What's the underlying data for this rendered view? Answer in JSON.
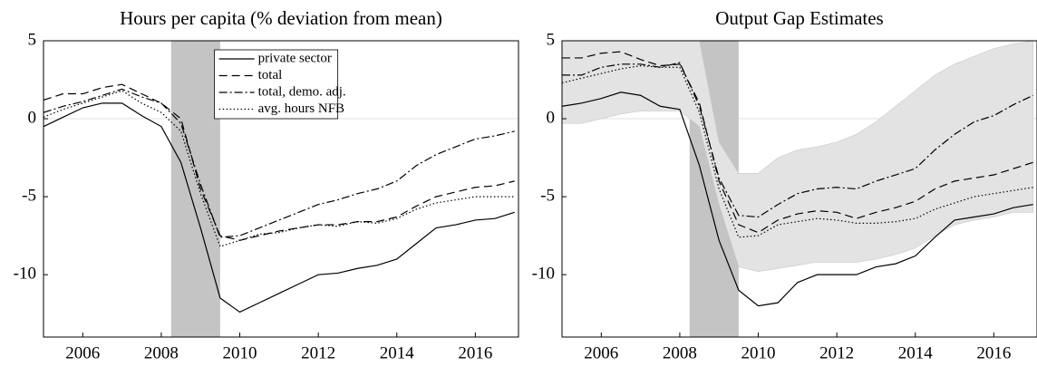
{
  "chart_data": [
    {
      "type": "line",
      "title": "Hours per capita (% deviation from mean)",
      "x": [
        2005,
        2005.5,
        2006,
        2006.5,
        2007,
        2007.5,
        2008,
        2008.5,
        2009,
        2009.5,
        2010,
        2010.5,
        2011,
        2011.5,
        2012,
        2012.5,
        2013,
        2013.5,
        2014,
        2014.5,
        2015,
        2015.5,
        2016,
        2016.5,
        2017
      ],
      "xlim": [
        2005,
        2017.1
      ],
      "xticks": [
        2006,
        2008,
        2010,
        2012,
        2014,
        2016
      ],
      "ylim": [
        -14,
        5
      ],
      "yticks": [
        5,
        0,
        -5,
        -10
      ],
      "zero_line": true,
      "recession": [
        2008.25,
        2009.5
      ],
      "legend": "upper-center",
      "series": [
        {
          "name": "private sector",
          "color": "#000000",
          "dash": "solid",
          "values": [
            -0.5,
            0.1,
            0.7,
            1.0,
            1.0,
            0.2,
            -0.5,
            -2.8,
            -7,
            -11.5,
            -12.4,
            -11.8,
            -11.2,
            -10.6,
            -10,
            -9.9,
            -9.6,
            -9.4,
            -9,
            -8,
            -7,
            -6.8,
            -6.5,
            -6.4,
            -6
          ]
        },
        {
          "name": "total",
          "color": "#000000",
          "dash": "dashed",
          "values": [
            1.2,
            1.6,
            1.6,
            2.0,
            2.2,
            1.6,
            1.0,
            0,
            -4.5,
            -7.5,
            -7.8,
            -7.5,
            -7.2,
            -7,
            -6.8,
            -6.8,
            -6.6,
            -6.6,
            -6.3,
            -5.6,
            -5,
            -4.7,
            -4.4,
            -4.3,
            -4
          ]
        },
        {
          "name": "total, demo. adj.",
          "color": "#000000",
          "dash": "dashdot",
          "values": [
            0.4,
            0.8,
            1.1,
            1.5,
            1.9,
            1.4,
            1.0,
            -0.3,
            -4.2,
            -7.6,
            -7.5,
            -7.0,
            -6.5,
            -6,
            -5.5,
            -5.2,
            -4.8,
            -4.5,
            -4,
            -3,
            -2.3,
            -1.8,
            -1.3,
            -1.1,
            -0.8
          ]
        },
        {
          "name": "avg. hours NFB",
          "color": "#000000",
          "dash": "dotted",
          "values": [
            0.1,
            0.6,
            1.0,
            1.4,
            1.8,
            1.0,
            0.4,
            -0.8,
            -4.8,
            -8.2,
            -7.8,
            -7.4,
            -7.3,
            -7,
            -6.8,
            -6.9,
            -6.6,
            -6.7,
            -6.4,
            -5.8,
            -5.4,
            -5.2,
            -5,
            -5,
            -5
          ]
        }
      ]
    },
    {
      "type": "line",
      "title": "Output Gap Estimates",
      "x": [
        2005,
        2005.5,
        2006,
        2006.5,
        2007,
        2007.5,
        2008,
        2008.5,
        2009,
        2009.5,
        2010,
        2010.5,
        2011,
        2011.5,
        2012,
        2012.5,
        2013,
        2013.5,
        2014,
        2014.5,
        2015,
        2015.5,
        2016,
        2016.5,
        2017
      ],
      "xlim": [
        2005,
        2017.1
      ],
      "xticks": [
        2006,
        2008,
        2010,
        2012,
        2014,
        2016
      ],
      "ylim": [
        -14,
        5
      ],
      "yticks": [
        5,
        0,
        -5,
        -10
      ],
      "zero_line": true,
      "recession": [
        2008.25,
        2009.5
      ],
      "band": {
        "color": "#e3e3e3",
        "lower": [
          -0.3,
          -0.3,
          0,
          0.3,
          0.5,
          0.5,
          0.5,
          -0.5,
          -5.5,
          -9.5,
          -9.8,
          -9.6,
          -9.4,
          -9.2,
          -9.2,
          -9.2,
          -9,
          -8.7,
          -8.3,
          -7.5,
          -6.8,
          -6.5,
          -6.3,
          -6,
          -6
        ],
        "upper": [
          5,
          5,
          5,
          5,
          5,
          5,
          5,
          5,
          -1.5,
          -3.5,
          -3.5,
          -2.5,
          -2,
          -1.8,
          -1.5,
          -1,
          -0.2,
          0.8,
          1.8,
          2.8,
          3.5,
          4,
          4.5,
          4.8,
          5
        ]
      },
      "series": [
        {
          "name": "private sector",
          "color": "#000000",
          "dash": "solid",
          "values": [
            0.8,
            1.0,
            1.3,
            1.7,
            1.5,
            0.8,
            0.6,
            -3,
            -7.8,
            -11,
            -12,
            -11.8,
            -10.5,
            -10,
            -10,
            -10,
            -9.5,
            -9.3,
            -8.8,
            -7.6,
            -6.5,
            -6.3,
            -6.1,
            -5.7,
            -5.5
          ]
        },
        {
          "name": "total",
          "color": "#000000",
          "dash": "dashed",
          "values": [
            3.9,
            3.9,
            4.2,
            4.3,
            3.8,
            3.4,
            3.5,
            1,
            -4,
            -6.8,
            -7.3,
            -6.5,
            -6.1,
            -5.9,
            -6,
            -6.4,
            -6,
            -5.7,
            -5.3,
            -4.5,
            -4,
            -3.8,
            -3.6,
            -3.2,
            -2.8
          ]
        },
        {
          "name": "total, demo. adj.",
          "color": "#000000",
          "dash": "dashdot",
          "values": [
            2.8,
            2.8,
            3.3,
            3.5,
            3.5,
            3.3,
            3.6,
            0.8,
            -3.8,
            -6.2,
            -6.3,
            -5.5,
            -4.8,
            -4.5,
            -4.4,
            -4.5,
            -4.0,
            -3.6,
            -3.2,
            -2,
            -1,
            -0.2,
            0.2,
            0.9,
            1.5
          ]
        },
        {
          "name": "avg. hours NFB",
          "color": "#000000",
          "dash": "dotted",
          "values": [
            2.3,
            2.6,
            2.9,
            3.2,
            3.4,
            3.3,
            3.3,
            0.4,
            -4.5,
            -7.6,
            -7.5,
            -6.8,
            -6.6,
            -6.4,
            -6.5,
            -6.7,
            -6.7,
            -6.6,
            -6.4,
            -5.8,
            -5.4,
            -5,
            -4.8,
            -4.6,
            -4.4
          ]
        }
      ]
    }
  ]
}
